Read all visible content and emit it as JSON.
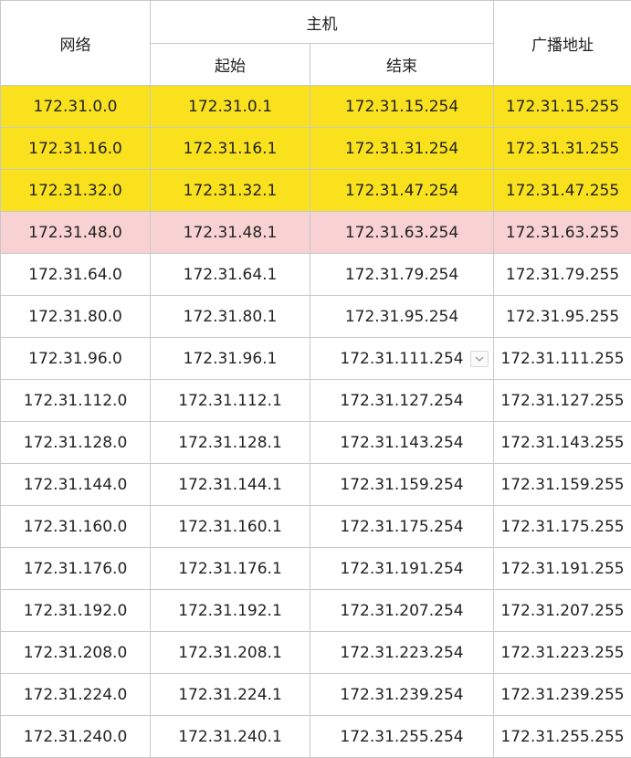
{
  "header": {
    "network": "网络",
    "host": "主机",
    "host_start": "起始",
    "host_end": "结束",
    "broadcast": "广播地址"
  },
  "rows": [
    {
      "network": "172.31.0.0",
      "start": "172.31.0.1",
      "end": "172.31.15.254",
      "broadcast": "172.31.15.255",
      "highlight": "yellow"
    },
    {
      "network": "172.31.16.0",
      "start": "172.31.16.1",
      "end": "172.31.31.254",
      "broadcast": "172.31.31.255",
      "highlight": "yellow"
    },
    {
      "network": "172.31.32.0",
      "start": "172.31.32.1",
      "end": "172.31.47.254",
      "broadcast": "172.31.47.255",
      "highlight": "yellow"
    },
    {
      "network": "172.31.48.0",
      "start": "172.31.48.1",
      "end": "172.31.63.254",
      "broadcast": "172.31.63.255",
      "highlight": "pink"
    },
    {
      "network": "172.31.64.0",
      "start": "172.31.64.1",
      "end": "172.31.79.254",
      "broadcast": "172.31.79.255",
      "highlight": "none"
    },
    {
      "network": "172.31.80.0",
      "start": "172.31.80.1",
      "end": "172.31.95.254",
      "broadcast": "172.31.95.255",
      "highlight": "none"
    },
    {
      "network": "172.31.96.0",
      "start": "172.31.96.1",
      "end": "172.31.111.254",
      "broadcast": "172.31.111.255",
      "highlight": "none"
    },
    {
      "network": "172.31.112.0",
      "start": "172.31.112.1",
      "end": "172.31.127.254",
      "broadcast": "172.31.127.255",
      "highlight": "none"
    },
    {
      "network": "172.31.128.0",
      "start": "172.31.128.1",
      "end": "172.31.143.254",
      "broadcast": "172.31.143.255",
      "highlight": "none"
    },
    {
      "network": "172.31.144.0",
      "start": "172.31.144.1",
      "end": "172.31.159.254",
      "broadcast": "172.31.159.255",
      "highlight": "none"
    },
    {
      "network": "172.31.160.0",
      "start": "172.31.160.1",
      "end": "172.31.175.254",
      "broadcast": "172.31.175.255",
      "highlight": "none"
    },
    {
      "network": "172.31.176.0",
      "start": "172.31.176.1",
      "end": "172.31.191.254",
      "broadcast": "172.31.191.255",
      "highlight": "none"
    },
    {
      "network": "172.31.192.0",
      "start": "172.31.192.1",
      "end": "172.31.207.254",
      "broadcast": "172.31.207.255",
      "highlight": "none"
    },
    {
      "network": "172.31.208.0",
      "start": "172.31.208.1",
      "end": "172.31.223.254",
      "broadcast": "172.31.223.255",
      "highlight": "none"
    },
    {
      "network": "172.31.224.0",
      "start": "172.31.224.1",
      "end": "172.31.239.254",
      "broadcast": "172.31.239.255",
      "highlight": "none"
    },
    {
      "network": "172.31.240.0",
      "start": "172.31.240.1",
      "end": "172.31.255.254",
      "broadcast": "172.31.255.255",
      "highlight": "none"
    }
  ],
  "cell_dropdown": {
    "icon": "chevron-down-icon",
    "row_index": 6,
    "column": "end"
  },
  "colors": {
    "yellow": "#f9e11e",
    "pink": "#f8d2d2",
    "none": "#ffffff",
    "border": "#c8c8c8"
  }
}
